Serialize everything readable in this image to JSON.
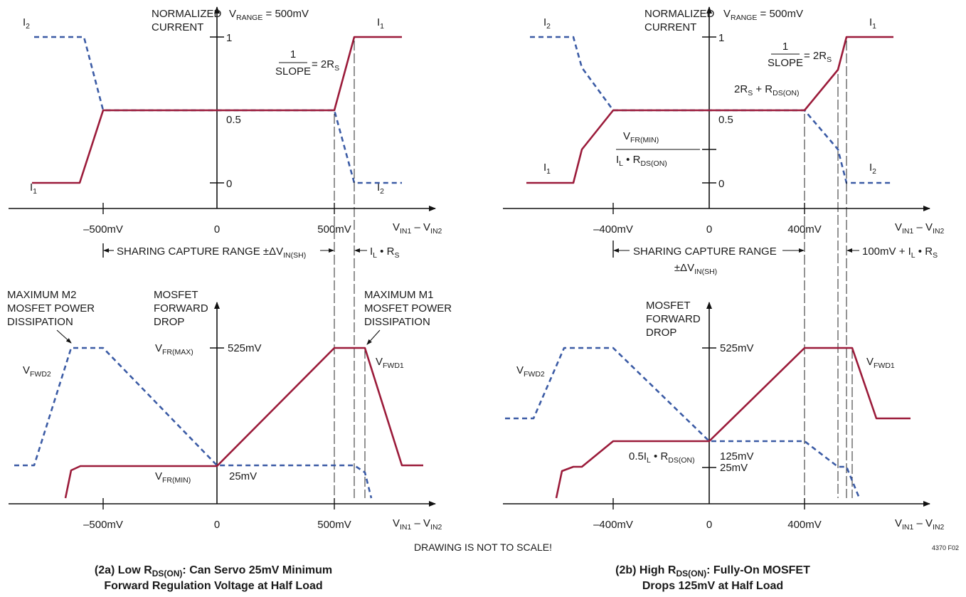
{
  "common": {
    "normalized_current": [
      "NORMALIZED",
      "CURRENT"
    ],
    "vrange": "V",
    "vrange_sub": "RANGE",
    "vrange_val": " = 500mV",
    "one": "1",
    "half": "0.5",
    "zero": "0",
    "i1": "I",
    "i1_sub": "1",
    "i2": "I",
    "i2_sub": "2",
    "slope_num": "1",
    "slope_den": "SLOPE",
    "slope_eq": "= 2R",
    "slope_eq_sub": "S",
    "xaxis": "V",
    "xaxis_sub1": "IN1",
    "xaxis_mid": " – V",
    "xaxis_sub2": "IN2",
    "mosfet_drop": [
      "MOSFET",
      "FORWARD",
      "DROP"
    ],
    "vfwd": "V",
    "vfwd1_sub": "FWD1",
    "vfwd2_sub": "FWD2",
    "sharing": "SHARING CAPTURE RANGE",
    "delta": "±ΔV",
    "delta_sub": "IN(SH)",
    "tick_525": "525mV",
    "tick_25": "25mV"
  },
  "left": {
    "x_ticks": [
      "–500mV",
      "0",
      "500mV"
    ],
    "il_rs": "I",
    "il_rs_sub1": "L",
    "il_rs_mid": " • R",
    "il_rs_sub2": "S",
    "max_m2": [
      "MAXIMUM M2",
      "MOSFET POWER",
      "DISSIPATION"
    ],
    "max_m1": [
      "MAXIMUM M1",
      "MOSFET POWER",
      "DISSIPATION"
    ],
    "vfr_max": "V",
    "vfr_max_sub": "FR(MAX)",
    "vfr_min": "V",
    "vfr_min_sub": "FR(MIN)",
    "caption": [
      "(2a) Low R",
      "DS(ON)",
      ": Can Servo 25mV Minimum",
      "Forward Regulation Voltage at Half Load"
    ]
  },
  "right": {
    "x_ticks": [
      "–400mV",
      "0",
      "400mV"
    ],
    "rds_label": "2R",
    "rds_label_sub1": "S",
    "rds_label_mid": " + R",
    "rds_label_sub2": "DS(ON)",
    "frac_num": "V",
    "frac_num_sub": "FR(MIN)",
    "frac_den": "I",
    "frac_den_sub1": "L",
    "frac_den_mid": " • R",
    "frac_den_sub2": "DS(ON)",
    "offset": "100mV + I",
    "offset_sub1": "L",
    "offset_mid": " • R",
    "offset_sub2": "S",
    "half_il": "0.5I",
    "half_il_sub1": "L",
    "half_il_mid": " • R",
    "half_il_sub2": "DS(ON)",
    "tick_125": "125mV",
    "caption": [
      "(2b) High R",
      "DS(ON)",
      ": Fully-On MOSFET",
      "Drops 125mV at Half Load"
    ]
  },
  "footer": {
    "note": "DRAWING IS NOT TO SCALE!",
    "code": "4370 F02"
  },
  "colors": {
    "i1_line": "#9b1b3a",
    "i2_line": "#3b5ba5"
  }
}
